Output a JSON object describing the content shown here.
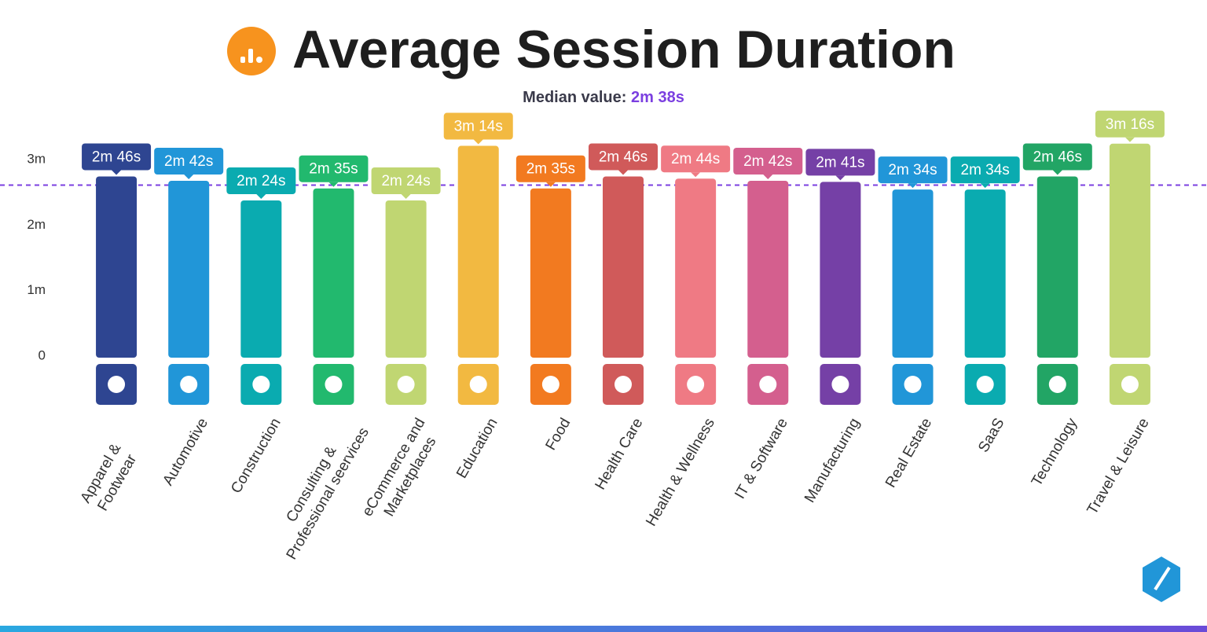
{
  "chart_data": {
    "type": "bar",
    "title": "Average Session Duration",
    "median": {
      "label": "Median value:",
      "value": 2.6333,
      "value_label": "2m 38s",
      "color": "#7b3fe0"
    },
    "categories": [
      "Apparel & Footwear",
      "Automotive",
      "Construction",
      "Consulting &\nProfessional seervices",
      "eCommerce and\nMarketplaces",
      "Education",
      "Food",
      "Health Care",
      "Health & Wellness",
      "IT & Software",
      "Manufacturing",
      "Real Estate",
      "SaaS",
      "Technology",
      "Travel & Leisure"
    ],
    "values": [
      2.7667,
      2.7,
      2.4,
      2.5833,
      2.4,
      3.2333,
      2.5833,
      2.7667,
      2.7333,
      2.7,
      2.6833,
      2.5667,
      2.5667,
      2.7667,
      3.2667
    ],
    "value_labels": [
      "2m 46s",
      "2m 42s",
      "2m 24s",
      "2m 35s",
      "2m 24s",
      "3m 14s",
      "2m 35s",
      "2m 46s",
      "2m 44s",
      "2m 42s",
      "2m 41s",
      "2m 34s",
      "2m 34s",
      "2m 46s",
      "3m 16s"
    ],
    "colors": [
      "#2e4591",
      "#2196d8",
      "#0aabb0",
      "#22b96e",
      "#c0d672",
      "#f2b941",
      "#f27a20",
      "#d05a5a",
      "#ef7a84",
      "#d45f8e",
      "#7540a6",
      "#2196d8",
      "#0aabb0",
      "#22a565",
      "#c0d672"
    ],
    "ylim": [
      0,
      3.3
    ],
    "yticks": [
      0,
      {
        "value": 1,
        "label": "1m"
      },
      {
        "value": 2,
        "label": "2m"
      },
      {
        "value": 3,
        "label": "3m"
      }
    ],
    "grid": false
  }
}
